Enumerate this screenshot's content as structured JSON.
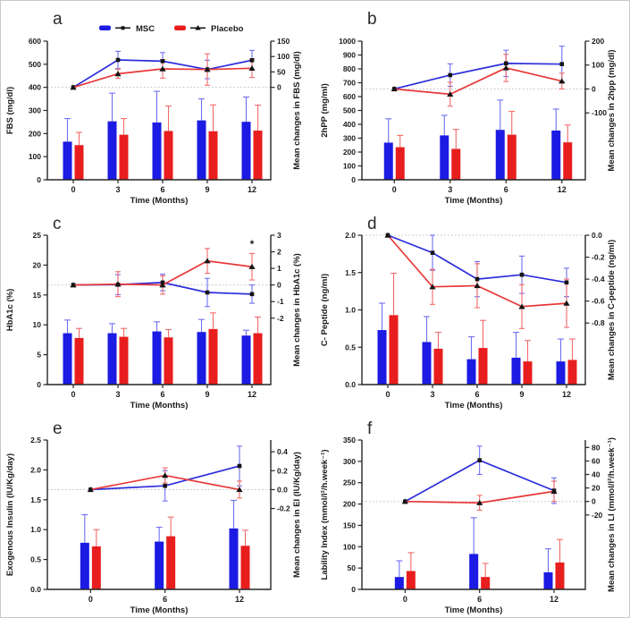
{
  "colors": {
    "msc_bar": "#1b1be4",
    "placebo_bar": "#e81e1e",
    "msc_err": "#6f6ff2",
    "placebo_err": "#f26a6a",
    "msc_line": "#2c2cdc",
    "placebo_line": "#e83838",
    "marker": "#141414",
    "zero_line": "#bdbdbd",
    "axis": "#262626",
    "text": "#1a1a1a"
  },
  "legend": {
    "items": [
      {
        "label": "MSC",
        "marker": "square"
      },
      {
        "label": "Placebo",
        "marker": "triangle"
      }
    ]
  },
  "chart_data": [
    {
      "id": "a",
      "letter": "a",
      "type": "bar+line",
      "has_legend": true,
      "x_axis": {
        "label": "Time (Months)",
        "categories": [
          "0",
          "3",
          "6",
          "9",
          "12"
        ]
      },
      "left_axis": {
        "label": "FBS (mg/dl)",
        "min": 0,
        "max": 600,
        "ticks": [
          "0",
          "100",
          "200",
          "300",
          "400",
          "500",
          "600"
        ]
      },
      "right_axis": {
        "label": "Mean changes in FBS (mg/dl)",
        "ticks": [
          "150",
          "100",
          "50",
          "0"
        ],
        "zero_at_left": 400,
        "left_units_per_right_unit": 1.3333
      },
      "bars": {
        "series": [
          {
            "name": "MSC",
            "values": [
              165,
              253,
              248,
              257,
              251
            ],
            "upper_err": [
              100,
              122,
              135,
              93,
              107
            ]
          },
          {
            "name": "Placebo",
            "values": [
              150,
              195,
              211,
              210,
              213
            ],
            "upper_err": [
              55,
              70,
              108,
              114,
              110
            ]
          }
        ]
      },
      "lines": {
        "series": [
          {
            "name": "MSC",
            "values": [
              0,
              89,
              85,
              58,
              88
            ],
            "err": [
              0,
              28,
              28,
              30,
              32
            ]
          },
          {
            "name": "Placebo",
            "values": [
              0,
              44,
              60,
              58,
              62
            ],
            "err": [
              0,
              15,
              30,
              51,
              30
            ]
          }
        ]
      },
      "annotations": []
    },
    {
      "id": "b",
      "letter": "b",
      "type": "bar+line",
      "has_legend": false,
      "x_axis": {
        "label": "Time (Months)",
        "categories": [
          "0",
          "3",
          "6",
          "12"
        ]
      },
      "left_axis": {
        "label": "2hPP (mg/ml)",
        "min": 0,
        "max": 1000,
        "ticks": [
          "0",
          "100",
          "200",
          "300",
          "400",
          "500",
          "600",
          "700",
          "800",
          "900",
          "1000"
        ]
      },
      "right_axis": {
        "label": "Mean changes in 2hpp (mg/dl)",
        "ticks": [
          "200",
          "100",
          "0",
          "-100"
        ],
        "zero_at_left": 655,
        "left_units_per_right_unit": 1.725
      },
      "bars": {
        "series": [
          {
            "name": "MSC",
            "values": [
              268,
              320,
              360,
              355
            ],
            "upper_err": [
              172,
              145,
              215,
              155
            ]
          },
          {
            "name": "Placebo",
            "values": [
              235,
              223,
              325,
              270
            ],
            "upper_err": [
              85,
              140,
              168,
              125
            ]
          }
        ]
      },
      "lines": {
        "series": [
          {
            "name": "MSC",
            "values": [
              0,
              58,
              107,
              104
            ],
            "err": [
              0,
              47,
              55,
              75
            ]
          },
          {
            "name": "Placebo",
            "values": [
              0,
              -22,
              88,
              33
            ],
            "err": [
              0,
              50,
              57,
              33
            ]
          }
        ]
      },
      "annotations": []
    },
    {
      "id": "c",
      "letter": "c",
      "type": "bar+line",
      "has_legend": false,
      "x_axis": {
        "label": "Time (Months)",
        "categories": [
          "0",
          "3",
          "6",
          "9",
          "12"
        ]
      },
      "left_axis": {
        "label": "HbA1c (%)",
        "min": 0,
        "max": 25,
        "ticks": [
          "0",
          "5",
          "10",
          "15",
          "20",
          "25"
        ]
      },
      "right_axis": {
        "label": "Mean changes in HbA1c (%)",
        "ticks": [
          "3",
          "2",
          "1",
          "0",
          "-1",
          "-2"
        ],
        "zero_at_left": 16.67,
        "left_units_per_right_unit": 2.778
      },
      "bars": {
        "series": [
          {
            "name": "MSC",
            "values": [
              8.6,
              8.6,
              8.9,
              8.8,
              8.2
            ],
            "upper_err": [
              2.2,
              1.6,
              1.6,
              2.1,
              0.9
            ]
          },
          {
            "name": "Placebo",
            "values": [
              7.8,
              8.0,
              7.9,
              9.3,
              8.6
            ],
            "upper_err": [
              1.6,
              1.4,
              1.3,
              2.7,
              2.7
            ]
          }
        ]
      },
      "lines": {
        "series": [
          {
            "name": "MSC",
            "values": [
              0,
              0.02,
              0.15,
              -0.45,
              -0.55
            ],
            "err": [
              0,
              0.6,
              0.5,
              0.85,
              0.55
            ]
          },
          {
            "name": "Placebo",
            "values": [
              0,
              0.05,
              0.0,
              1.45,
              1.1
            ],
            "err": [
              0,
              0.75,
              0.55,
              0.75,
              0.8
            ]
          }
        ]
      },
      "annotations": [
        {
          "text": "*",
          "category_index": 4,
          "right_value": 2.25
        }
      ]
    },
    {
      "id": "d",
      "letter": "d",
      "type": "bar+line",
      "has_legend": false,
      "x_axis": {
        "label": "Time (Months)",
        "categories": [
          "0",
          "3",
          "6",
          "9",
          "12"
        ]
      },
      "left_axis": {
        "label": "C- Peptide (ng/ml)",
        "min": 0,
        "max": 2.0,
        "ticks": [
          "0.0",
          "0.5",
          "1.0",
          "1.5",
          "2.0"
        ]
      },
      "right_axis": {
        "label": "Mean changes in C-peptide (ng/ml)",
        "ticks": [
          "0.0",
          "-0.2",
          "-0.4",
          "-0.6",
          "-0.8"
        ],
        "zero_at_left": 2.0,
        "left_units_per_right_unit": 1.47
      },
      "bars": {
        "series": [
          {
            "name": "MSC",
            "values": [
              0.73,
              0.57,
              0.34,
              0.36,
              0.31
            ],
            "upper_err": [
              0.36,
              0.34,
              0.3,
              0.34,
              0.3
            ]
          },
          {
            "name": "Placebo",
            "values": [
              0.93,
              0.48,
              0.49,
              0.31,
              0.33
            ],
            "upper_err": [
              0.56,
              0.22,
              0.37,
              0.28,
              0.28
            ]
          }
        ]
      },
      "lines": {
        "series": [
          {
            "name": "MSC",
            "values": [
              0,
              -0.16,
              -0.4,
              -0.36,
              -0.43
            ],
            "err": [
              0,
              0.16,
              0.16,
              0.17,
              0.13
            ]
          },
          {
            "name": "Placebo",
            "values": [
              0,
              -0.47,
              -0.46,
              -0.65,
              -0.62
            ],
            "err": [
              0,
              0.16,
              0.2,
              0.2,
              0.22
            ]
          }
        ]
      },
      "annotations": []
    },
    {
      "id": "e",
      "letter": "e",
      "type": "bar+line",
      "has_legend": false,
      "x_axis": {
        "label": "Time (Months)",
        "categories": [
          "0",
          "6",
          "12"
        ]
      },
      "left_axis": {
        "label": "Exogenous Insulin (IU/Kg/day)",
        "min": 0,
        "max": 2.5,
        "ticks": [
          "0.0",
          "0.5",
          "1.0",
          "1.5",
          "2.0",
          "2.5"
        ]
      },
      "right_axis": {
        "label": "Mean changes in EI (IU/Kg/day)",
        "ticks": [
          "0.4",
          "0.2",
          "0.0",
          "-0.2"
        ],
        "zero_at_left": 1.67,
        "left_units_per_right_unit": 1.583
      },
      "bars": {
        "series": [
          {
            "name": "MSC",
            "values": [
              0.78,
              0.8,
              1.02
            ],
            "upper_err": [
              0.47,
              0.24,
              0.47
            ]
          },
          {
            "name": "Placebo",
            "values": [
              0.72,
              0.89,
              0.73
            ],
            "upper_err": [
              0.28,
              0.32,
              0.26
            ]
          }
        ]
      },
      "lines": {
        "series": [
          {
            "name": "MSC",
            "values": [
              0,
              0.04,
              0.25
            ],
            "err": [
              0,
              0.16,
              0.21
            ]
          },
          {
            "name": "Placebo",
            "values": [
              0,
              0.15,
              0.0
            ],
            "err": [
              0,
              0.08,
              0.09
            ]
          }
        ]
      },
      "annotations": []
    },
    {
      "id": "f",
      "letter": "f",
      "type": "bar+line",
      "has_legend": false,
      "x_axis": {
        "label": "Time (Months)",
        "categories": [
          "0",
          "6",
          "12"
        ]
      },
      "left_axis": {
        "label": "Lability Index (mmol/l²/h.week⁻¹)",
        "min": 0,
        "max": 350,
        "ticks": [
          "0",
          "50",
          "100",
          "150",
          "200",
          "250",
          "300",
          "350"
        ]
      },
      "right_axis": {
        "label": "Mean changes in LI (mmol/l²/h.week⁻¹)",
        "ticks": [
          "80",
          "60",
          "40",
          "20",
          "0",
          "-20"
        ],
        "zero_at_left": 206,
        "left_units_per_right_unit": 1.582
      },
      "bars": {
        "series": [
          {
            "name": "MSC",
            "values": [
              29,
              83,
              40
            ],
            "upper_err": [
              38,
              85,
              55
            ]
          },
          {
            "name": "Placebo",
            "values": [
              43,
              29,
              63
            ],
            "upper_err": [
              43,
              32,
              54
            ]
          }
        ]
      },
      "lines": {
        "series": [
          {
            "name": "MSC",
            "values": [
              0,
              61,
              16
            ],
            "err": [
              0,
              21,
              19
            ]
          },
          {
            "name": "Placebo",
            "values": [
              0,
              -2,
              15
            ],
            "err": [
              0,
              11,
              15
            ]
          }
        ]
      },
      "annotations": []
    }
  ]
}
